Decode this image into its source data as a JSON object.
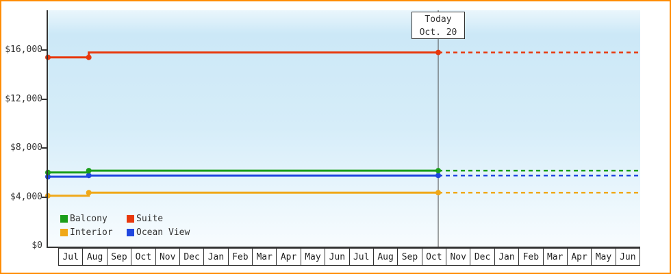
{
  "window": {
    "background": "#ffffff",
    "border_color": "#ff8c00"
  },
  "chart_data": {
    "type": "line",
    "title": "",
    "today_label": {
      "line1": "Today",
      "line2": "Oct. 20"
    },
    "today_t": 0.659,
    "grid": false,
    "legend_position": "bottom-left",
    "y_axis": {
      "min": 0,
      "max": 16000,
      "ticks": [
        {
          "label": "$0",
          "value": 0
        },
        {
          "label": "$4,000",
          "value": 4000
        },
        {
          "label": "$8,000",
          "value": 8000
        },
        {
          "label": "$12,000",
          "value": 12000
        },
        {
          "label": "$16,000",
          "value": 16000
        }
      ]
    },
    "x_axis": {
      "months": [
        "Jul",
        "Aug",
        "Sep",
        "Oct",
        "Nov",
        "Dec",
        "Jan",
        "Feb",
        "Mar",
        "Apr",
        "May",
        "Jun",
        "Jul",
        "Aug",
        "Sep",
        "Oct",
        "Nov",
        "Dec",
        "Jan",
        "Feb",
        "Mar",
        "Apr",
        "May",
        "Jun"
      ]
    },
    "series": [
      {
        "name": "Interior",
        "color": "#f0a818",
        "points": [
          [
            0,
            4100
          ],
          [
            0.069,
            4100
          ],
          [
            0.069,
            4350
          ],
          [
            0.659,
            4350
          ]
        ],
        "forecast": [
          [
            0.659,
            4350
          ],
          [
            1,
            4350
          ]
        ],
        "markers": [
          [
            0,
            4100
          ],
          [
            0.069,
            4350
          ],
          [
            0.659,
            4350
          ]
        ]
      },
      {
        "name": "Ocean View",
        "color": "#2047e0",
        "points": [
          [
            0,
            5650
          ],
          [
            0.069,
            5650
          ],
          [
            0.069,
            5750
          ],
          [
            0.659,
            5750
          ]
        ],
        "forecast": [
          [
            0.659,
            5750
          ],
          [
            1,
            5750
          ]
        ],
        "markers": [
          [
            0,
            5650
          ],
          [
            0.069,
            5750
          ],
          [
            0.659,
            5750
          ]
        ]
      },
      {
        "name": "Balcony",
        "color": "#1a9e1a",
        "points": [
          [
            0,
            6000
          ],
          [
            0.069,
            6000
          ],
          [
            0.069,
            6150
          ],
          [
            0.659,
            6150
          ]
        ],
        "forecast": [
          [
            0.659,
            6150
          ],
          [
            1,
            6150
          ]
        ],
        "markers": [
          [
            0,
            6000
          ],
          [
            0.069,
            6150
          ],
          [
            0.659,
            6150
          ]
        ]
      },
      {
        "name": "Suite",
        "color": "#e8380d",
        "points": [
          [
            0,
            15400
          ],
          [
            0.069,
            15400
          ],
          [
            0.069,
            15800
          ],
          [
            0.659,
            15800
          ]
        ],
        "forecast": [
          [
            0.659,
            15800
          ],
          [
            1,
            15800
          ]
        ],
        "markers": [
          [
            0,
            15400
          ],
          [
            0.069,
            15400
          ],
          [
            0.659,
            15800
          ]
        ]
      }
    ],
    "legend": [
      {
        "label": "Balcony",
        "color": "#1a9e1a"
      },
      {
        "label": "Suite",
        "color": "#e8380d"
      },
      {
        "label": "Interior",
        "color": "#f0a818"
      },
      {
        "label": "Ocean View",
        "color": "#2047e0"
      }
    ]
  }
}
